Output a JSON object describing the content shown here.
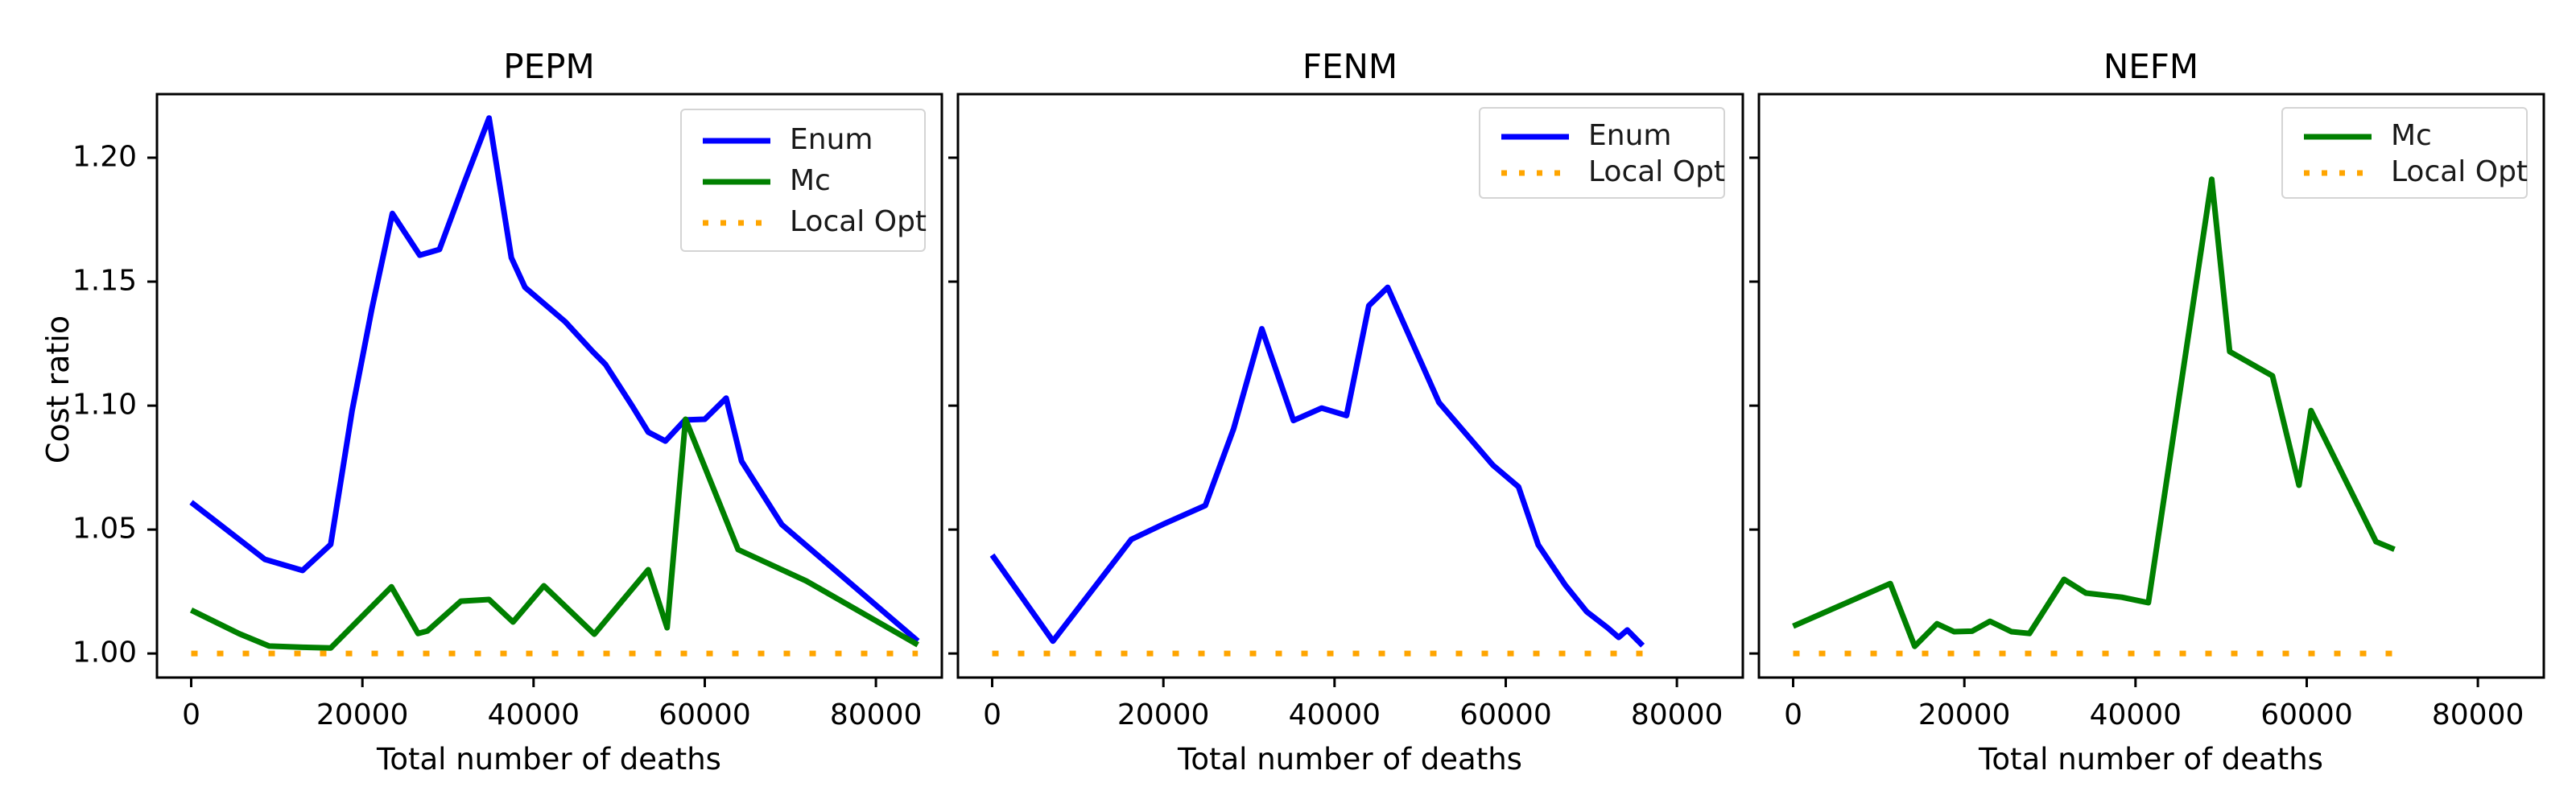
{
  "chart_data": {
    "type": "line",
    "ylabel": "Cost ratio",
    "xlabel": "Total number of deaths",
    "xlim": [
      -4000,
      87700
    ],
    "ylim": [
      0.9903,
      1.22565
    ],
    "xtick_values": [
      0,
      20000,
      40000,
      60000,
      80000
    ],
    "xtick_labels": [
      "0",
      "20000",
      "40000",
      "60000",
      "80000"
    ],
    "ytick_values": [
      1.0,
      1.05,
      1.1,
      1.15,
      1.2
    ],
    "ytick_labels": [
      "1.00",
      "1.05",
      "1.10",
      "1.15",
      "1.20"
    ],
    "grid": false,
    "legend_position": "upper right",
    "colors": {
      "enum": "#0000ff",
      "mc": "#008000",
      "local_opt": "#ffa500"
    },
    "panels": [
      {
        "title": "PEPM",
        "show_ytick_labels": true,
        "legend": [
          "Enum",
          "Mc",
          "Local Opt"
        ],
        "series": [
          {
            "name": "Enum",
            "color": "enum",
            "linestyle": "solid",
            "points": [
              [
                0,
                1.061
              ],
              [
                8600,
                1.038
              ],
              [
                13000,
                1.0335
              ],
              [
                16300,
                1.044
              ],
              [
                18800,
                1.098
              ],
              [
                21100,
                1.139
              ],
              [
                23500,
                1.1775
              ],
              [
                26700,
                1.1607
              ],
              [
                29000,
                1.163
              ],
              [
                31800,
                1.189
              ],
              [
                34800,
                1.216
              ],
              [
                37400,
                1.1597
              ],
              [
                39000,
                1.1477
              ],
              [
                43700,
                1.1338
              ],
              [
                46900,
                1.1218
              ],
              [
                48400,
                1.1166
              ],
              [
                51500,
                1.1
              ],
              [
                53400,
                1.0893
              ],
              [
                55400,
                1.0857
              ],
              [
                57700,
                1.0942
              ],
              [
                60000,
                1.0945
              ],
              [
                62500,
                1.103
              ],
              [
                64300,
                1.0776
              ],
              [
                69000,
                1.052
              ],
              [
                84900,
                1.005
              ]
            ]
          },
          {
            "name": "Mc",
            "color": "mc",
            "linestyle": "solid",
            "points": [
              [
                0,
                1.0175
              ],
              [
                5600,
                1.008
              ],
              [
                9100,
                1.003
              ],
              [
                13000,
                1.0025
              ],
              [
                16300,
                1.0022
              ],
              [
                23400,
                1.0269
              ],
              [
                26500,
                1.0081
              ],
              [
                27600,
                1.0091
              ],
              [
                31500,
                1.0211
              ],
              [
                34800,
                1.0218
              ],
              [
                37600,
                1.0127
              ],
              [
                41200,
                1.0273
              ],
              [
                47100,
                1.0078
              ],
              [
                53400,
                1.0338
              ],
              [
                55600,
                1.0104
              ],
              [
                57750,
                1.0945
              ],
              [
                63900,
                1.0419
              ],
              [
                71850,
                1.0293
              ],
              [
                84900,
                1.0035
              ]
            ]
          },
          {
            "name": "Local Opt",
            "color": "local_opt",
            "linestyle": "dotted",
            "points": [
              [
                0,
                1.0
              ],
              [
                84900,
                1.0
              ]
            ]
          }
        ]
      },
      {
        "title": "FENM",
        "show_ytick_labels": false,
        "legend": [
          "Enum",
          "Local Opt"
        ],
        "series": [
          {
            "name": "Enum",
            "color": "enum",
            "linestyle": "solid",
            "points": [
              [
                0,
                1.0397
              ],
              [
                7100,
                1.005
              ],
              [
                16250,
                1.046
              ],
              [
                20200,
                1.0525
              ],
              [
                24900,
                1.0597
              ],
              [
                28200,
                1.0906
              ],
              [
                31500,
                1.131
              ],
              [
                35200,
                1.094
              ],
              [
                38500,
                1.099
              ],
              [
                41400,
                1.096
              ],
              [
                44000,
                1.1403
              ],
              [
                46200,
                1.1477
              ],
              [
                52200,
                1.1013
              ],
              [
                58500,
                1.076
              ],
              [
                61500,
                1.0672
              ],
              [
                63800,
                1.0438
              ],
              [
                66950,
                1.0276
              ],
              [
                69450,
                1.0169
              ],
              [
                71900,
                1.0104
              ],
              [
                73200,
                1.0065
              ],
              [
                74200,
                1.0095
              ],
              [
                76000,
                1.0032
              ]
            ]
          },
          {
            "name": "Local Opt",
            "color": "local_opt",
            "linestyle": "dotted",
            "points": [
              [
                0,
                1.0
              ],
              [
                76000,
                1.0
              ]
            ]
          }
        ]
      },
      {
        "title": "NEFM",
        "show_ytick_labels": false,
        "legend": [
          "Mc",
          "Local Opt"
        ],
        "series": [
          {
            "name": "Mc",
            "color": "mc",
            "linestyle": "solid",
            "points": [
              [
                0,
                1.011
              ],
              [
                11350,
                1.0282
              ],
              [
                14200,
                1.0029
              ],
              [
                16800,
                1.012
              ],
              [
                18800,
                1.0088
              ],
              [
                20900,
                1.009
              ],
              [
                23000,
                1.013
              ],
              [
                25500,
                1.0088
              ],
              [
                27600,
                1.0081
              ],
              [
                31650,
                1.0299
              ],
              [
                34200,
                1.0244
              ],
              [
                38400,
                1.0227
              ],
              [
                40600,
                1.0211
              ],
              [
                41500,
                1.0205
              ],
              [
                48900,
                1.1913
              ],
              [
                51000,
                1.1218
              ],
              [
                56000,
                1.112
              ],
              [
                59100,
                1.0679
              ],
              [
                60500,
                1.098
              ],
              [
                68100,
                1.0451
              ],
              [
                70250,
                1.042
              ]
            ]
          },
          {
            "name": "Local Opt",
            "color": "local_opt",
            "linestyle": "dotted",
            "points": [
              [
                0,
                1.0
              ],
              [
                70250,
                1.0
              ]
            ]
          }
        ]
      }
    ]
  }
}
